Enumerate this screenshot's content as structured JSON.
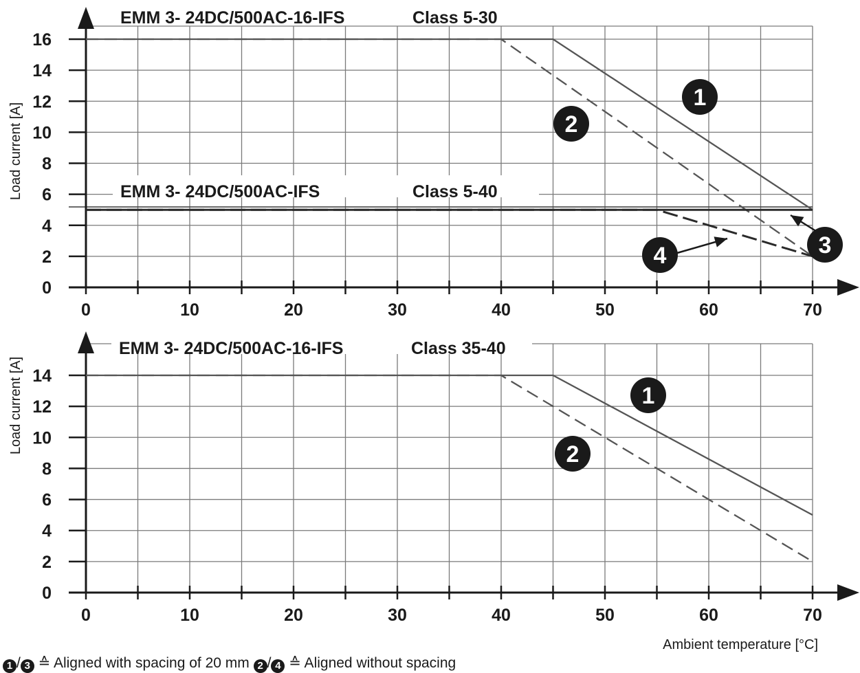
{
  "chart_data": [
    {
      "type": "line",
      "titles": [
        {
          "text": "EMM 3- 24DC/500AC-16-IFS",
          "class_label": "Class 5-30"
        },
        {
          "text": "EMM 3- 24DC/500AC-IFS",
          "class_label": "Class 5-40"
        }
      ],
      "ylabel": "Load current [A]",
      "xlabel": "",
      "x_ticks": [
        "0",
        "10",
        "20",
        "30",
        "40",
        "50",
        "60",
        "70"
      ],
      "y_ticks": [
        "0",
        "2",
        "4",
        "6",
        "8",
        "10",
        "12",
        "14",
        "16"
      ],
      "xlim": [
        0,
        70
      ],
      "ylim": [
        0,
        16
      ],
      "grid": true,
      "series": [
        {
          "name": "1",
          "style": "solid",
          "x": [
            0,
            45,
            70
          ],
          "y": [
            16,
            16,
            5
          ]
        },
        {
          "name": "2",
          "style": "dashed",
          "x": [
            0,
            40,
            70
          ],
          "y": [
            16,
            16,
            2
          ]
        },
        {
          "name": "3",
          "style": "solid",
          "x": [
            0,
            70
          ],
          "y": [
            5,
            5
          ]
        },
        {
          "name": "4",
          "style": "dashed",
          "x": [
            0,
            55,
            70
          ],
          "y": [
            5,
            5,
            2
          ]
        }
      ]
    },
    {
      "type": "line",
      "titles": [
        {
          "text": "EMM 3- 24DC/500AC-16-IFS",
          "class_label": "Class 35-40"
        }
      ],
      "ylabel": "Load current [A]",
      "xlabel": "Ambient temperature [°C]",
      "x_ticks": [
        "0",
        "10",
        "20",
        "30",
        "40",
        "50",
        "60",
        "70"
      ],
      "y_ticks": [
        "0",
        "2",
        "4",
        "6",
        "8",
        "10",
        "12",
        "14"
      ],
      "xlim": [
        0,
        70
      ],
      "ylim": [
        0,
        14
      ],
      "grid": true,
      "series": [
        {
          "name": "1",
          "style": "solid",
          "x": [
            0,
            45,
            70
          ],
          "y": [
            14,
            14,
            5
          ]
        },
        {
          "name": "2",
          "style": "dashed",
          "x": [
            0,
            40,
            70
          ],
          "y": [
            14,
            14,
            2
          ]
        }
      ]
    }
  ],
  "footnote": {
    "marker_a": "1",
    "marker_b": "3",
    "text_a": " ≙ Aligned with spacing of 20 mm ",
    "marker_c": "2",
    "marker_d": "4",
    "text_b": " ≙ Aligned without spacing"
  }
}
